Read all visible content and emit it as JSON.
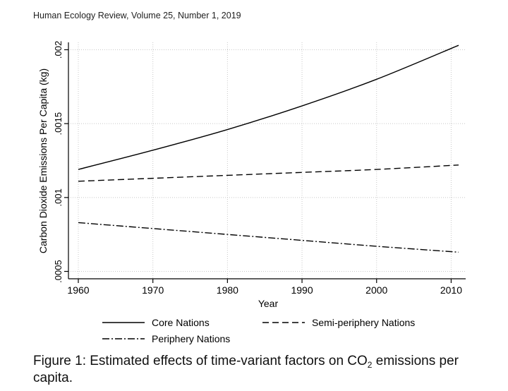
{
  "header": {
    "journal_line": "Human Ecology Review, Volume 25, Number 1, 2019"
  },
  "caption": {
    "prefix": "Figure 1: Estimated effects of time-variant factors on CO",
    "subscript": "2",
    "suffix": " emissions per capita."
  },
  "chart_data": {
    "type": "line",
    "title": "",
    "xlabel": "Year",
    "ylabel": "Carbon Dioxide Emissions Per Capita (kg)",
    "xlim": [
      1960,
      2011
    ],
    "ylim": [
      0.00045,
      0.00205
    ],
    "x_ticks": [
      1960,
      1970,
      1980,
      1990,
      2000,
      2010
    ],
    "x_tick_labels": [
      "1960",
      "1970",
      "1980",
      "1990",
      "2000",
      "2010"
    ],
    "y_ticks": [
      0.0005,
      0.001,
      0.0015,
      0.002
    ],
    "y_tick_labels": [
      ".0005",
      ".001",
      ".0015",
      ".002"
    ],
    "grid": true,
    "legend_position": "bottom",
    "x": [
      1960,
      1970,
      1980,
      1990,
      2000,
      2011
    ],
    "series": [
      {
        "name": "Core Nations",
        "dash": "solid",
        "color": "#000000",
        "values": [
          0.00119,
          0.00132,
          0.00146,
          0.00162,
          0.0018,
          0.00203
        ]
      },
      {
        "name": "Semi-periphery Nations",
        "dash": "dashed",
        "color": "#000000",
        "values": [
          0.00111,
          0.00113,
          0.00115,
          0.00117,
          0.00119,
          0.00122
        ]
      },
      {
        "name": "Periphery Nations",
        "dash": "dash-dot",
        "color": "#000000",
        "values": [
          0.00083,
          0.00079,
          0.00075,
          0.00071,
          0.00067,
          0.00063
        ]
      }
    ]
  }
}
